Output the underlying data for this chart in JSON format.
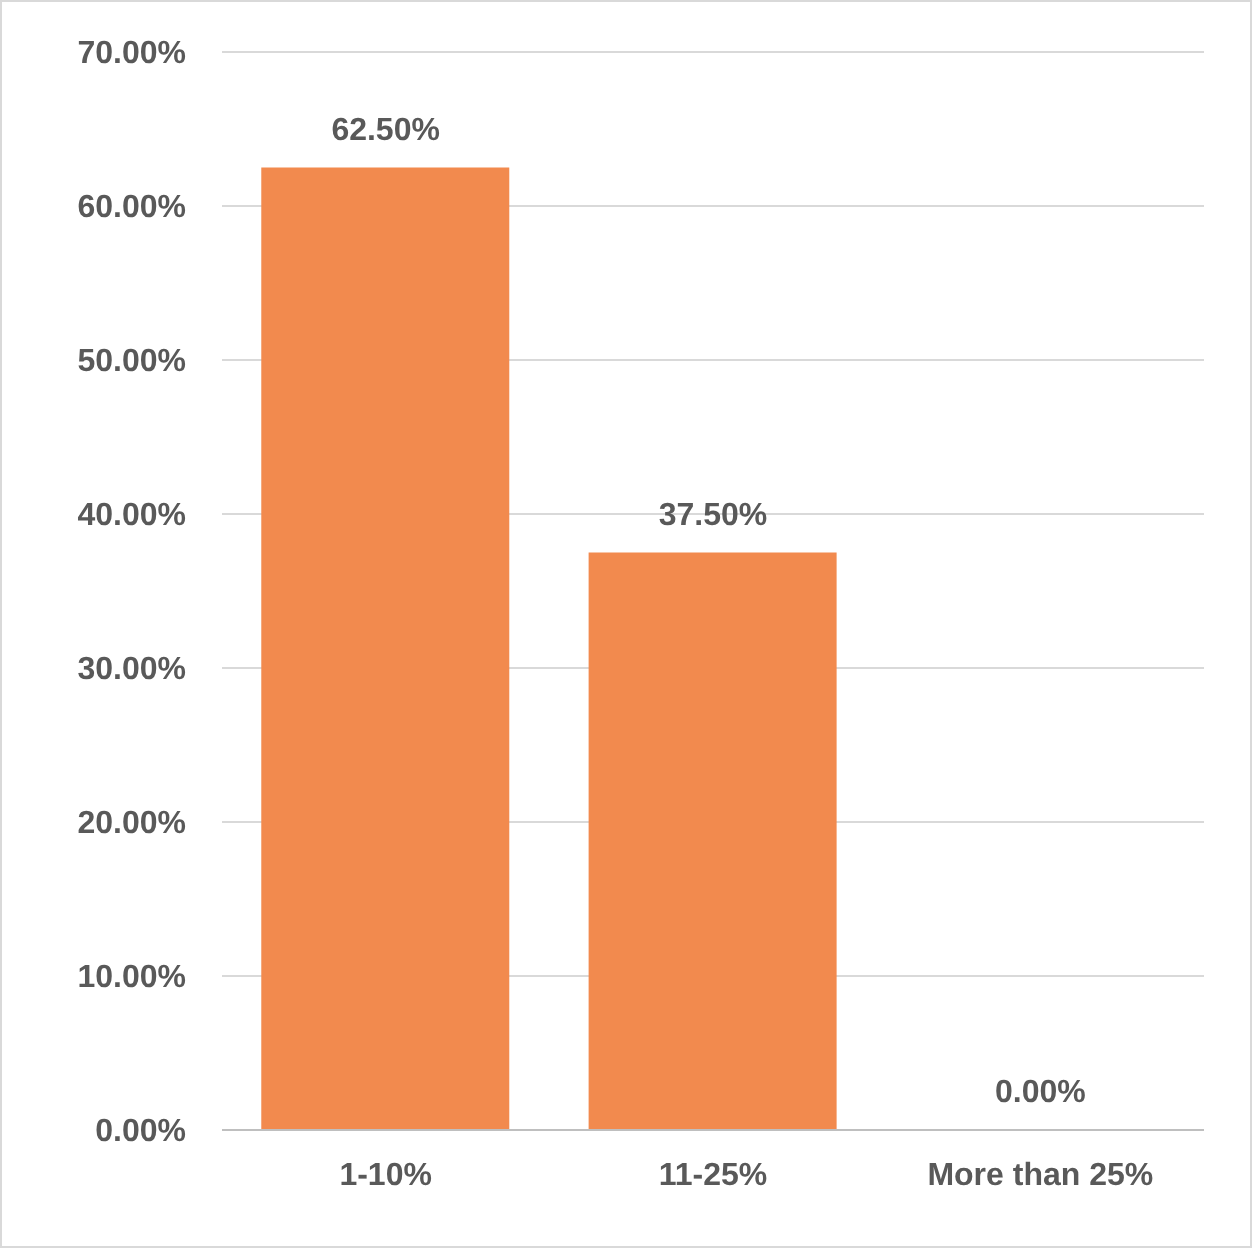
{
  "chart_data": {
    "type": "bar",
    "categories": [
      "1-10%",
      "11-25%",
      "More than 25%"
    ],
    "values": [
      62.5,
      37.5,
      0
    ],
    "value_labels": [
      "62.50%",
      "37.50%",
      "0.00%"
    ],
    "color": "#f28a4e",
    "ylim": [
      0,
      70
    ],
    "yticks": [
      {
        "value": 0,
        "label": "0.00%"
      },
      {
        "value": 10,
        "label": "10.00%"
      },
      {
        "value": 20,
        "label": "20.00%"
      },
      {
        "value": 30,
        "label": "30.00%"
      },
      {
        "value": 40,
        "label": "40.00%"
      },
      {
        "value": 50,
        "label": "50.00%"
      },
      {
        "value": 60,
        "label": "60.00%"
      },
      {
        "value": 70,
        "label": "70.00%"
      }
    ],
    "grid": "y"
  }
}
